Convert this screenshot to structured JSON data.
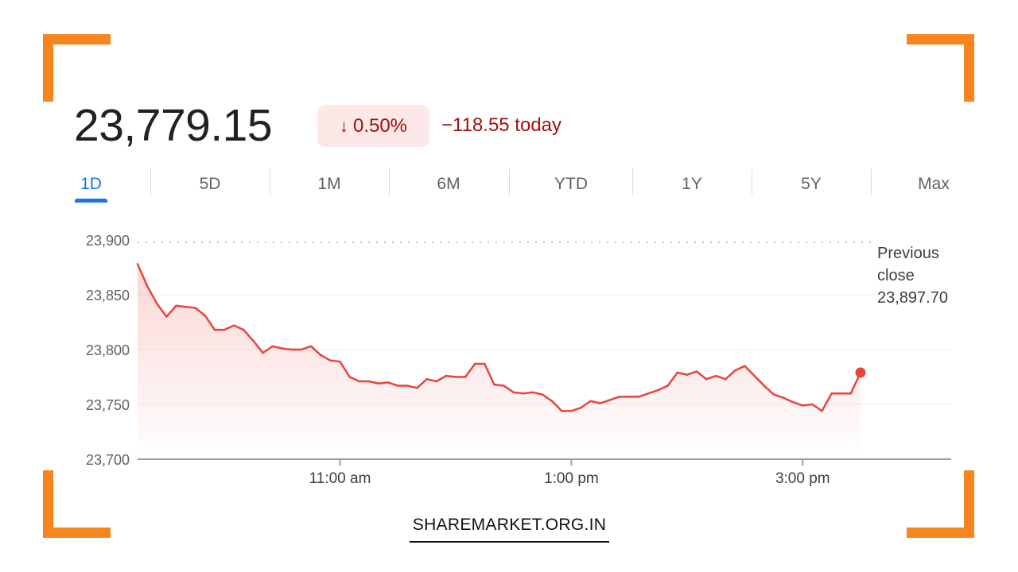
{
  "header": {
    "price": "23,779.15",
    "change_percent": "0.50%",
    "change_icon": "arrow-down-icon",
    "change_today": "−118.55 today"
  },
  "tabs": [
    "1D",
    "5D",
    "1M",
    "6M",
    "YTD",
    "1Y",
    "5Y",
    "Max"
  ],
  "active_tab": "1D",
  "colors": {
    "line": "#e8453c",
    "negative_text": "#a50e0e",
    "negative_bg": "#fce8e6",
    "accent_blue": "#1a73e8",
    "frame_orange": "#f7861f"
  },
  "previous_close": {
    "label_line1": "Previous",
    "label_line2": "close",
    "value": "23,897.70",
    "numeric": 23897.7
  },
  "brand": "SHAREMARKET.ORG.IN",
  "chart_data": {
    "type": "area",
    "ylim": [
      23700,
      23900
    ],
    "y_ticks": [
      {
        "value": 23900,
        "label": "23,900"
      },
      {
        "value": 23850,
        "label": "23,850"
      },
      {
        "value": 23800,
        "label": "23,800"
      },
      {
        "value": 23750,
        "label": "23,750"
      },
      {
        "value": 23700,
        "label": "23,700"
      }
    ],
    "x_range_minutes": [
      555,
      930
    ],
    "x_ticks": [
      {
        "minute": 660,
        "label": "11:00 am"
      },
      {
        "minute": 780,
        "label": "1:00 pm"
      },
      {
        "minute": 900,
        "label": "3:00 pm"
      }
    ],
    "series": [
      {
        "points": [
          [
            555,
            23878
          ],
          [
            560,
            23858
          ],
          [
            565,
            23842
          ],
          [
            570,
            23830
          ],
          [
            575,
            23840
          ],
          [
            580,
            23839
          ],
          [
            585,
            23838
          ],
          [
            590,
            23831
          ],
          [
            595,
            23818
          ],
          [
            600,
            23818
          ],
          [
            605,
            23822
          ],
          [
            610,
            23818
          ],
          [
            615,
            23808
          ],
          [
            620,
            23797
          ],
          [
            625,
            23803
          ],
          [
            630,
            23801
          ],
          [
            635,
            23800
          ],
          [
            640,
            23800
          ],
          [
            645,
            23803
          ],
          [
            650,
            23795
          ],
          [
            655,
            23790
          ],
          [
            660,
            23789
          ],
          [
            665,
            23775
          ],
          [
            670,
            23771
          ],
          [
            675,
            23771
          ],
          [
            680,
            23769
          ],
          [
            685,
            23770
          ],
          [
            690,
            23767
          ],
          [
            695,
            23767
          ],
          [
            700,
            23765
          ],
          [
            705,
            23773
          ],
          [
            710,
            23771
          ],
          [
            715,
            23776
          ],
          [
            720,
            23775
          ],
          [
            725,
            23775
          ],
          [
            730,
            23787
          ],
          [
            735,
            23787
          ],
          [
            740,
            23768
          ],
          [
            745,
            23767
          ],
          [
            750,
            23761
          ],
          [
            755,
            23760
          ],
          [
            760,
            23761
          ],
          [
            765,
            23759
          ],
          [
            770,
            23753
          ],
          [
            775,
            23744
          ],
          [
            780,
            23744
          ],
          [
            785,
            23747
          ],
          [
            790,
            23753
          ],
          [
            795,
            23751
          ],
          [
            800,
            23754
          ],
          [
            805,
            23757
          ],
          [
            810,
            23757
          ],
          [
            815,
            23757
          ],
          [
            820,
            23760
          ],
          [
            825,
            23763
          ],
          [
            830,
            23767
          ],
          [
            835,
            23779
          ],
          [
            840,
            23777
          ],
          [
            845,
            23780
          ],
          [
            850,
            23773
          ],
          [
            855,
            23776
          ],
          [
            860,
            23773
          ],
          [
            865,
            23781
          ],
          [
            870,
            23785
          ],
          [
            875,
            23776
          ],
          [
            880,
            23767
          ],
          [
            885,
            23759
          ],
          [
            890,
            23756
          ],
          [
            895,
            23752
          ],
          [
            900,
            23749
          ],
          [
            905,
            23750
          ],
          [
            910,
            23744
          ],
          [
            915,
            23760
          ],
          [
            920,
            23760
          ],
          [
            925,
            23760
          ],
          [
            930,
            23779
          ]
        ]
      }
    ]
  }
}
